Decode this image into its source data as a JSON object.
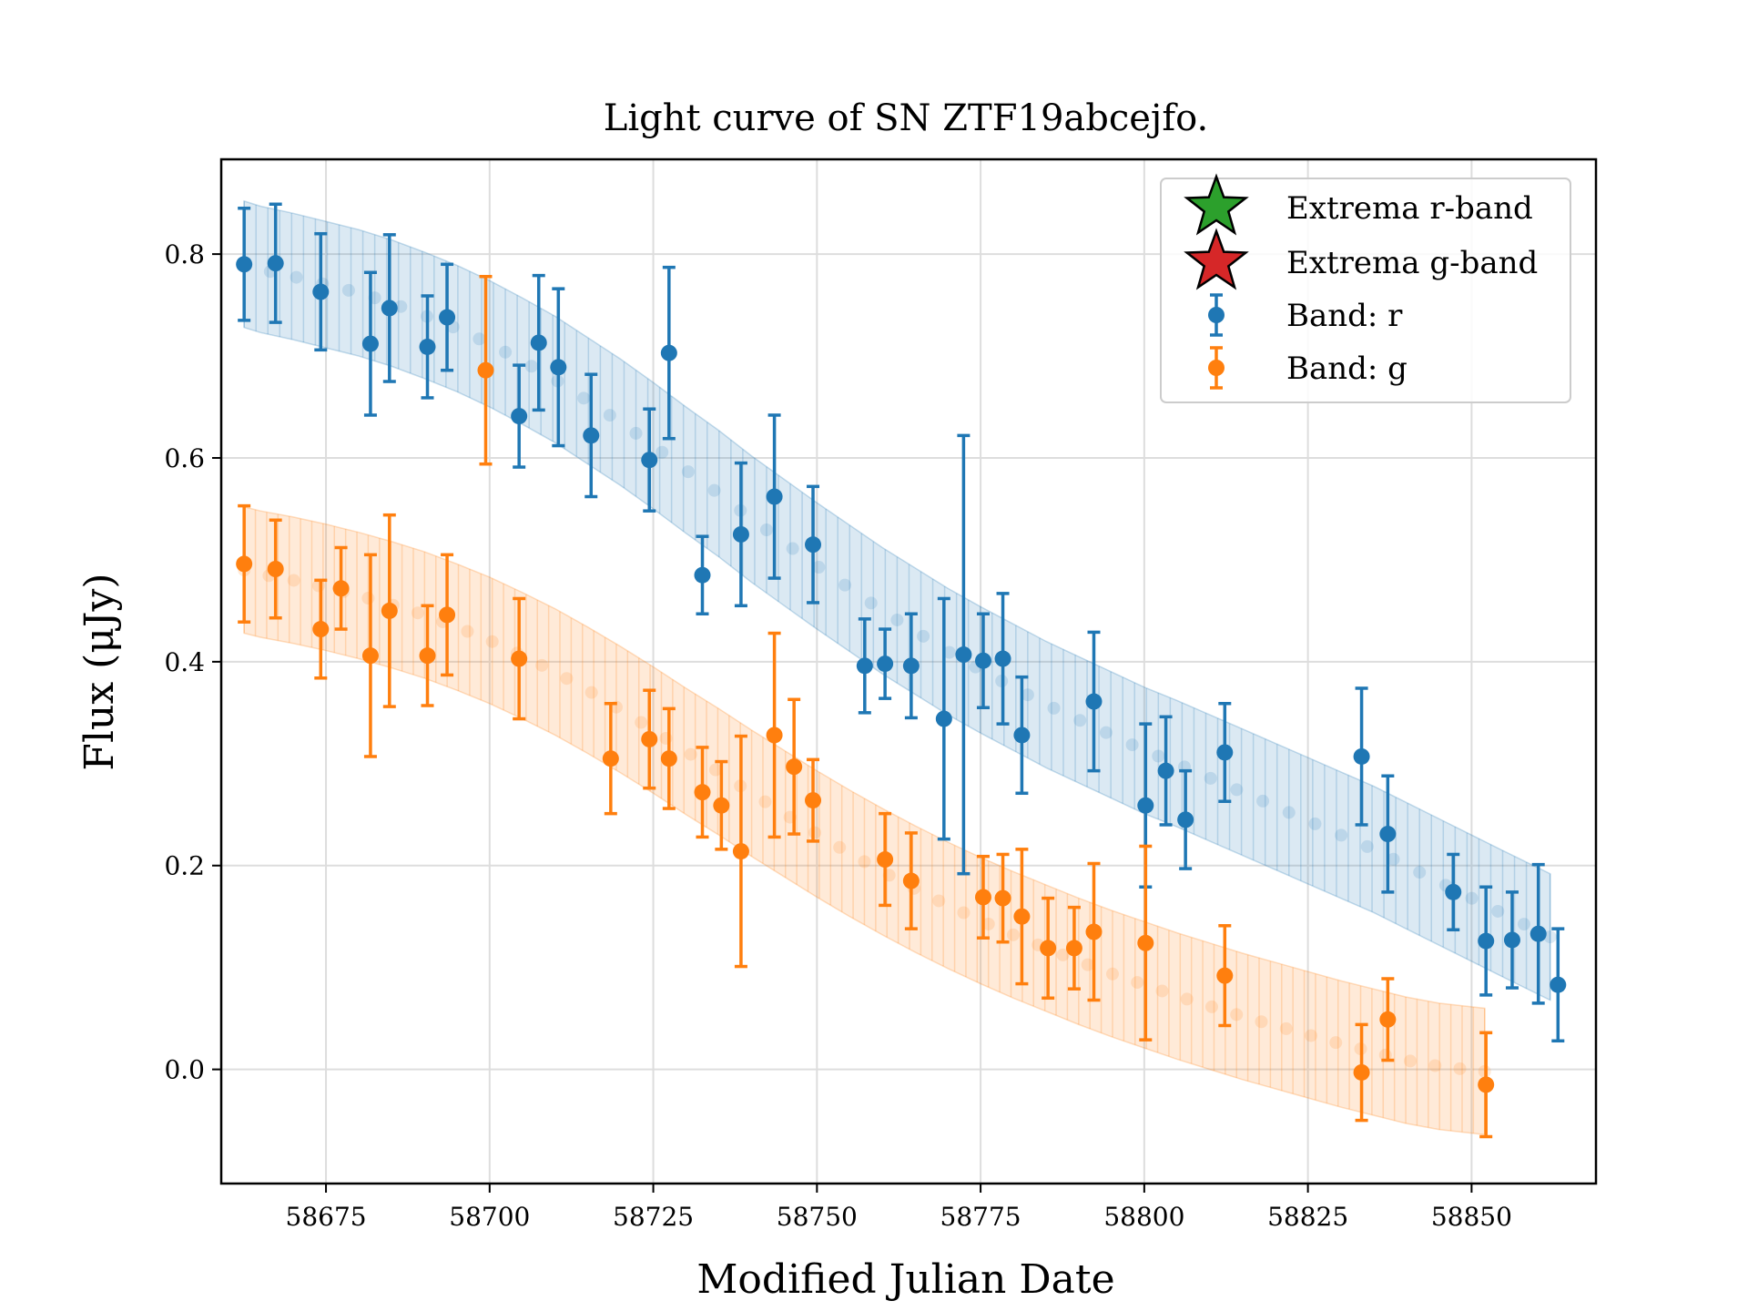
{
  "chart_data": {
    "type": "scatter",
    "title": "Light curve of SN ZTF19abcejfo.",
    "xlabel": "Modified Julian Date",
    "ylabel": "Flux (μJy)",
    "xlim": [
      58659,
      58869
    ],
    "ylim": [
      -0.112,
      0.893
    ],
    "x_ticks": [
      58675,
      58700,
      58725,
      58750,
      58775,
      58800,
      58825,
      58850
    ],
    "y_ticks": [
      0.0,
      0.2,
      0.4,
      0.6,
      0.8
    ],
    "grid": true,
    "legend_position": "top-right",
    "legend": [
      {
        "label": "Extrema r-band",
        "marker": "star",
        "color": "#2ca02c"
      },
      {
        "label": "Extrema g-band",
        "marker": "star",
        "color": "#d62728"
      },
      {
        "label": "Band: r",
        "marker": "errorbar-point",
        "color": "#1f77b4"
      },
      {
        "label": "Band: g",
        "marker": "errorbar-point",
        "color": "#ff7f0e"
      }
    ],
    "colors": {
      "r": "#1f77b4",
      "g": "#ff7f0e"
    },
    "series": [
      {
        "name": "Band: r",
        "band": "r",
        "points": [
          {
            "x": 58662.5,
            "y": 0.79,
            "err": 0.055
          },
          {
            "x": 58667.3,
            "y": 0.791,
            "err": 0.058
          },
          {
            "x": 58674.2,
            "y": 0.763,
            "err": 0.057
          },
          {
            "x": 58681.8,
            "y": 0.712,
            "err": 0.07
          },
          {
            "x": 58684.7,
            "y": 0.747,
            "err": 0.072
          },
          {
            "x": 58690.5,
            "y": 0.709,
            "err": 0.05
          },
          {
            "x": 58693.5,
            "y": 0.738,
            "err": 0.052
          },
          {
            "x": 58704.5,
            "y": 0.641,
            "err": 0.05
          },
          {
            "x": 58707.5,
            "y": 0.713,
            "err": 0.066
          },
          {
            "x": 58710.5,
            "y": 0.689,
            "err": 0.077
          },
          {
            "x": 58715.5,
            "y": 0.622,
            "err": 0.06
          },
          {
            "x": 58724.4,
            "y": 0.598,
            "err": 0.05
          },
          {
            "x": 58727.4,
            "y": 0.703,
            "err": 0.084
          },
          {
            "x": 58732.5,
            "y": 0.485,
            "err": 0.038
          },
          {
            "x": 58738.4,
            "y": 0.525,
            "err": 0.07
          },
          {
            "x": 58743.5,
            "y": 0.562,
            "err": 0.08
          },
          {
            "x": 58749.4,
            "y": 0.515,
            "err": 0.057
          },
          {
            "x": 58757.3,
            "y": 0.396,
            "err": 0.046
          },
          {
            "x": 58760.4,
            "y": 0.398,
            "err": 0.034
          },
          {
            "x": 58764.4,
            "y": 0.396,
            "err": 0.051
          },
          {
            "x": 58769.4,
            "y": 0.344,
            "err": 0.118
          },
          {
            "x": 58772.4,
            "y": 0.407,
            "err": 0.215
          },
          {
            "x": 58775.4,
            "y": 0.401,
            "err": 0.046
          },
          {
            "x": 58778.4,
            "y": 0.403,
            "err": 0.064
          },
          {
            "x": 58781.3,
            "y": 0.328,
            "err": 0.057
          },
          {
            "x": 58792.3,
            "y": 0.361,
            "err": 0.068
          },
          {
            "x": 58800.2,
            "y": 0.259,
            "err": 0.08
          },
          {
            "x": 58803.3,
            "y": 0.293,
            "err": 0.053
          },
          {
            "x": 58806.3,
            "y": 0.245,
            "err": 0.048
          },
          {
            "x": 58812.3,
            "y": 0.311,
            "err": 0.048
          },
          {
            "x": 58833.2,
            "y": 0.307,
            "err": 0.067
          },
          {
            "x": 58837.2,
            "y": 0.231,
            "err": 0.057
          },
          {
            "x": 58847.2,
            "y": 0.174,
            "err": 0.037
          },
          {
            "x": 58852.2,
            "y": 0.126,
            "err": 0.053
          },
          {
            "x": 58856.2,
            "y": 0.127,
            "err": 0.047
          },
          {
            "x": 58860.2,
            "y": 0.133,
            "err": 0.068
          },
          {
            "x": 58863.2,
            "y": 0.083,
            "err": 0.055
          }
        ]
      },
      {
        "name": "Band: g",
        "band": "g",
        "points": [
          {
            "x": 58662.5,
            "y": 0.496,
            "err": 0.057
          },
          {
            "x": 58667.3,
            "y": 0.491,
            "err": 0.048
          },
          {
            "x": 58674.2,
            "y": 0.432,
            "err": 0.048
          },
          {
            "x": 58677.3,
            "y": 0.472,
            "err": 0.04
          },
          {
            "x": 58681.8,
            "y": 0.406,
            "err": 0.099
          },
          {
            "x": 58684.7,
            "y": 0.45,
            "err": 0.094
          },
          {
            "x": 58690.5,
            "y": 0.406,
            "err": 0.049
          },
          {
            "x": 58693.5,
            "y": 0.446,
            "err": 0.059
          },
          {
            "x": 58699.4,
            "y": 0.686,
            "err": 0.092
          },
          {
            "x": 58704.5,
            "y": 0.403,
            "err": 0.059
          },
          {
            "x": 58718.5,
            "y": 0.305,
            "err": 0.054
          },
          {
            "x": 58724.4,
            "y": 0.324,
            "err": 0.048
          },
          {
            "x": 58727.4,
            "y": 0.305,
            "err": 0.049
          },
          {
            "x": 58732.5,
            "y": 0.272,
            "err": 0.044
          },
          {
            "x": 58735.4,
            "y": 0.259,
            "err": 0.043
          },
          {
            "x": 58738.4,
            "y": 0.214,
            "err": 0.113
          },
          {
            "x": 58743.5,
            "y": 0.328,
            "err": 0.1
          },
          {
            "x": 58746.5,
            "y": 0.297,
            "err": 0.066
          },
          {
            "x": 58749.4,
            "y": 0.264,
            "err": 0.04
          },
          {
            "x": 58760.4,
            "y": 0.206,
            "err": 0.045
          },
          {
            "x": 58764.4,
            "y": 0.185,
            "err": 0.047
          },
          {
            "x": 58775.4,
            "y": 0.169,
            "err": 0.04
          },
          {
            "x": 58778.4,
            "y": 0.168,
            "err": 0.043
          },
          {
            "x": 58781.3,
            "y": 0.15,
            "err": 0.066
          },
          {
            "x": 58785.3,
            "y": 0.119,
            "err": 0.049
          },
          {
            "x": 58789.3,
            "y": 0.119,
            "err": 0.04
          },
          {
            "x": 58792.3,
            "y": 0.135,
            "err": 0.067
          },
          {
            "x": 58800.2,
            "y": 0.124,
            "err": 0.095
          },
          {
            "x": 58812.3,
            "y": 0.092,
            "err": 0.049
          },
          {
            "x": 58833.2,
            "y": -0.003,
            "err": 0.047
          },
          {
            "x": 58837.2,
            "y": 0.049,
            "err": 0.04
          },
          {
            "x": 58852.2,
            "y": -0.015,
            "err": 0.051
          }
        ]
      }
    ],
    "model_fits": [
      {
        "band": "r",
        "x_start": 58662.5,
        "x_end": 58862.0,
        "curve": [
          {
            "x": 58662.5,
            "y": 0.79
          },
          {
            "x": 58665,
            "y": 0.785
          },
          {
            "x": 58670,
            "y": 0.778
          },
          {
            "x": 58675,
            "y": 0.77
          },
          {
            "x": 58680,
            "y": 0.762
          },
          {
            "x": 58685,
            "y": 0.752
          },
          {
            "x": 58690,
            "y": 0.74
          },
          {
            "x": 58695,
            "y": 0.727
          },
          {
            "x": 58700,
            "y": 0.712
          },
          {
            "x": 58705,
            "y": 0.695
          },
          {
            "x": 58710,
            "y": 0.677
          },
          {
            "x": 58715,
            "y": 0.656
          },
          {
            "x": 58720,
            "y": 0.635
          },
          {
            "x": 58725,
            "y": 0.612
          },
          {
            "x": 58730,
            "y": 0.588
          },
          {
            "x": 58735,
            "y": 0.565
          },
          {
            "x": 58740,
            "y": 0.54
          },
          {
            "x": 58745,
            "y": 0.517
          },
          {
            "x": 58750,
            "y": 0.494
          },
          {
            "x": 58755,
            "y": 0.472
          },
          {
            "x": 58760,
            "y": 0.45
          },
          {
            "x": 58765,
            "y": 0.43
          },
          {
            "x": 58770,
            "y": 0.41
          },
          {
            "x": 58775,
            "y": 0.392
          },
          {
            "x": 58780,
            "y": 0.375
          },
          {
            "x": 58785,
            "y": 0.358
          },
          {
            "x": 58790,
            "y": 0.343
          },
          {
            "x": 58795,
            "y": 0.328
          },
          {
            "x": 58800,
            "y": 0.313
          },
          {
            "x": 58805,
            "y": 0.3
          },
          {
            "x": 58810,
            "y": 0.286
          },
          {
            "x": 58815,
            "y": 0.272
          },
          {
            "x": 58820,
            "y": 0.258
          },
          {
            "x": 58825,
            "y": 0.244
          },
          {
            "x": 58830,
            "y": 0.23
          },
          {
            "x": 58835,
            "y": 0.216
          },
          {
            "x": 58840,
            "y": 0.2
          },
          {
            "x": 58845,
            "y": 0.184
          },
          {
            "x": 58850,
            "y": 0.168
          },
          {
            "x": 58855,
            "y": 0.152
          },
          {
            "x": 58862,
            "y": 0.13
          }
        ],
        "band_halfwidth": 0.062
      },
      {
        "band": "g",
        "x_start": 58662.5,
        "x_end": 58852.0,
        "curve": [
          {
            "x": 58662.5,
            "y": 0.49
          },
          {
            "x": 58665,
            "y": 0.486
          },
          {
            "x": 58670,
            "y": 0.48
          },
          {
            "x": 58675,
            "y": 0.473
          },
          {
            "x": 58680,
            "y": 0.465
          },
          {
            "x": 58685,
            "y": 0.456
          },
          {
            "x": 58690,
            "y": 0.446
          },
          {
            "x": 58695,
            "y": 0.434
          },
          {
            "x": 58700,
            "y": 0.421
          },
          {
            "x": 58705,
            "y": 0.406
          },
          {
            "x": 58710,
            "y": 0.39
          },
          {
            "x": 58715,
            "y": 0.372
          },
          {
            "x": 58720,
            "y": 0.353
          },
          {
            "x": 58725,
            "y": 0.333
          },
          {
            "x": 58730,
            "y": 0.312
          },
          {
            "x": 58735,
            "y": 0.292
          },
          {
            "x": 58740,
            "y": 0.271
          },
          {
            "x": 58745,
            "y": 0.251
          },
          {
            "x": 58750,
            "y": 0.231
          },
          {
            "x": 58755,
            "y": 0.212
          },
          {
            "x": 58760,
            "y": 0.194
          },
          {
            "x": 58765,
            "y": 0.177
          },
          {
            "x": 58770,
            "y": 0.161
          },
          {
            "x": 58775,
            "y": 0.146
          },
          {
            "x": 58780,
            "y": 0.132
          },
          {
            "x": 58785,
            "y": 0.119
          },
          {
            "x": 58790,
            "y": 0.106
          },
          {
            "x": 58795,
            "y": 0.094
          },
          {
            "x": 58800,
            "y": 0.083
          },
          {
            "x": 58805,
            "y": 0.072
          },
          {
            "x": 58810,
            "y": 0.062
          },
          {
            "x": 58815,
            "y": 0.052
          },
          {
            "x": 58820,
            "y": 0.043
          },
          {
            "x": 58825,
            "y": 0.034
          },
          {
            "x": 58830,
            "y": 0.025
          },
          {
            "x": 58835,
            "y": 0.017
          },
          {
            "x": 58840,
            "y": 0.009
          },
          {
            "x": 58845,
            "y": 0.003
          },
          {
            "x": 58852,
            "y": -0.002
          }
        ],
        "band_halfwidth": 0.062
      }
    ]
  }
}
